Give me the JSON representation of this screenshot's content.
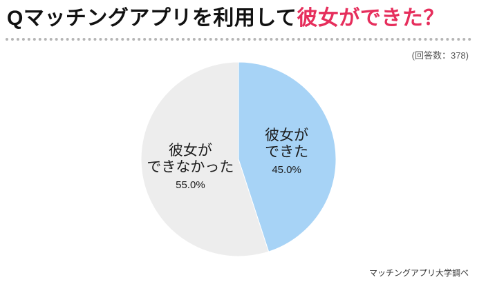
{
  "theme": {
    "accent_color": "#e62e5c",
    "title_color": "#111111"
  },
  "header": {
    "title_black": "Qマッチングアプリを利用して",
    "title_red": "彼女ができた？"
  },
  "chart_data": {
    "type": "pie",
    "title": "Qマッチングアプリを利用して彼女ができた？",
    "start_angle_deg": 0,
    "direction": "clockwise",
    "legend": "none",
    "slices": [
      {
        "label": "彼女ができた",
        "label_lines": [
          "彼女が",
          "できた"
        ],
        "value": 45.0,
        "pct_label": "45.0%",
        "color": "#a7d3f6"
      },
      {
        "label": "彼女ができなかった",
        "label_lines": [
          "彼女が",
          "できなかった"
        ],
        "value": 55.0,
        "pct_label": "55.0%",
        "color": "#ededed"
      }
    ],
    "annotations": {
      "response_count": "(回答数：378)",
      "source": "マッチングアプリ大学調べ"
    }
  }
}
